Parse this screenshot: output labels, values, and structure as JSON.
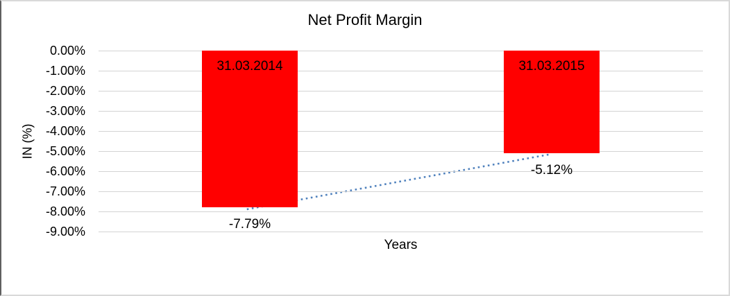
{
  "chart_data": {
    "type": "bar",
    "title": "Net Profit Margin",
    "xlabel": "Years",
    "ylabel": "IN (%)",
    "categories": [
      "31.03.2014",
      "31.03.2015"
    ],
    "values": [
      -7.79,
      -5.12
    ],
    "data_labels": [
      "-7.79%",
      "-5.12%"
    ],
    "y_ticks": [
      "0.00%",
      "-1.00%",
      "-2.00%",
      "-3.00%",
      "-4.00%",
      "-5.00%",
      "-6.00%",
      "-7.00%",
      "-8.00%",
      "-9.00%"
    ],
    "ylim": [
      -9,
      0
    ],
    "grid": true,
    "legend": "none",
    "bar_color": "#ff0000",
    "bar_label_color": "#000000",
    "trendline": {
      "type": "linear",
      "style": "dotted",
      "color": "#4f81bd",
      "from_value": -7.79,
      "to_value": -5.12
    },
    "colors": {
      "gridline": "#d3d3d3",
      "text": "#000000",
      "frame_border": "#d9d9d9",
      "frame_border_left": "#5f5f5f",
      "background": "#ffffff"
    }
  }
}
